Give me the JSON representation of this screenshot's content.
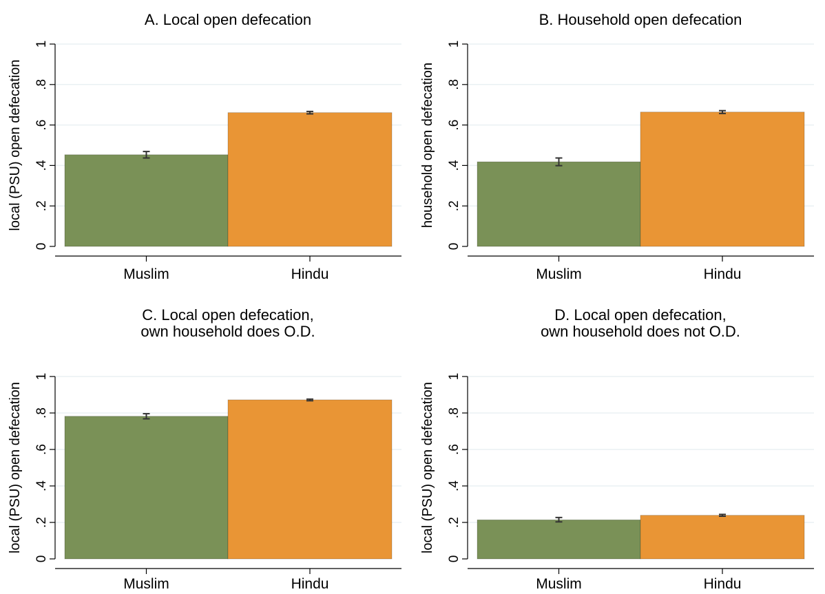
{
  "colors": {
    "muslim": "#7a9157",
    "hindu": "#e99535",
    "grid": "#eaf0f3",
    "axis": "#000000",
    "errorbar": "#333333"
  },
  "chart_data": [
    {
      "id": "a",
      "type": "bar",
      "title_lines": [
        "A. Local open defecation"
      ],
      "ylabel": "local (PSU) open defecation",
      "categories": [
        "Muslim",
        "Hindu"
      ],
      "values": [
        0.453,
        0.661
      ],
      "errors": [
        [
          0.437,
          0.469
        ],
        [
          0.655,
          0.667
        ]
      ],
      "ylim": [
        0,
        1
      ],
      "yticks": [
        {
          "v": 0,
          "label": "0"
        },
        {
          "v": 0.2,
          "label": ".2"
        },
        {
          "v": 0.4,
          "label": ".4"
        },
        {
          "v": 0.6,
          "label": ".6"
        },
        {
          "v": 0.8,
          "label": ".8"
        },
        {
          "v": 1,
          "label": "1"
        }
      ],
      "grid": true
    },
    {
      "id": "b",
      "type": "bar",
      "title_lines": [
        "B. Household open defecation"
      ],
      "ylabel": "household open defecation",
      "categories": [
        "Muslim",
        "Hindu"
      ],
      "values": [
        0.418,
        0.664
      ],
      "errors": [
        [
          0.399,
          0.437
        ],
        [
          0.657,
          0.671
        ]
      ],
      "ylim": [
        0,
        1
      ],
      "yticks": [
        {
          "v": 0,
          "label": "0"
        },
        {
          "v": 0.2,
          "label": ".2"
        },
        {
          "v": 0.4,
          "label": ".4"
        },
        {
          "v": 0.6,
          "label": ".6"
        },
        {
          "v": 0.8,
          "label": ".8"
        },
        {
          "v": 1,
          "label": "1"
        }
      ],
      "grid": true
    },
    {
      "id": "c",
      "type": "bar",
      "title_lines": [
        "C. Local open defecation,",
        "own household does O.D."
      ],
      "ylabel": "local (PSU) open defecation",
      "categories": [
        "Muslim",
        "Hindu"
      ],
      "values": [
        0.782,
        0.872
      ],
      "errors": [
        [
          0.768,
          0.796
        ],
        [
          0.867,
          0.876
        ]
      ],
      "ylim": [
        0,
        1
      ],
      "yticks": [
        {
          "v": 0,
          "label": "0"
        },
        {
          "v": 0.2,
          "label": ".2"
        },
        {
          "v": 0.4,
          "label": ".4"
        },
        {
          "v": 0.6,
          "label": ".6"
        },
        {
          "v": 0.8,
          "label": ".8"
        },
        {
          "v": 1,
          "label": "1"
        }
      ],
      "grid": true
    },
    {
      "id": "d",
      "type": "bar",
      "title_lines": [
        "D. Local open defecation,",
        "own household does not O.D."
      ],
      "ylabel": "local (PSU) open defecation",
      "categories": [
        "Muslim",
        "Hindu"
      ],
      "values": [
        0.214,
        0.239
      ],
      "errors": [
        [
          0.203,
          0.227
        ],
        [
          0.234,
          0.244
        ]
      ],
      "ylim": [
        0,
        1
      ],
      "yticks": [
        {
          "v": 0,
          "label": "0"
        },
        {
          "v": 0.2,
          "label": ".2"
        },
        {
          "v": 0.4,
          "label": ".4"
        },
        {
          "v": 0.6,
          "label": ".6"
        },
        {
          "v": 0.8,
          "label": ".8"
        },
        {
          "v": 1,
          "label": "1"
        }
      ],
      "grid": true
    }
  ]
}
